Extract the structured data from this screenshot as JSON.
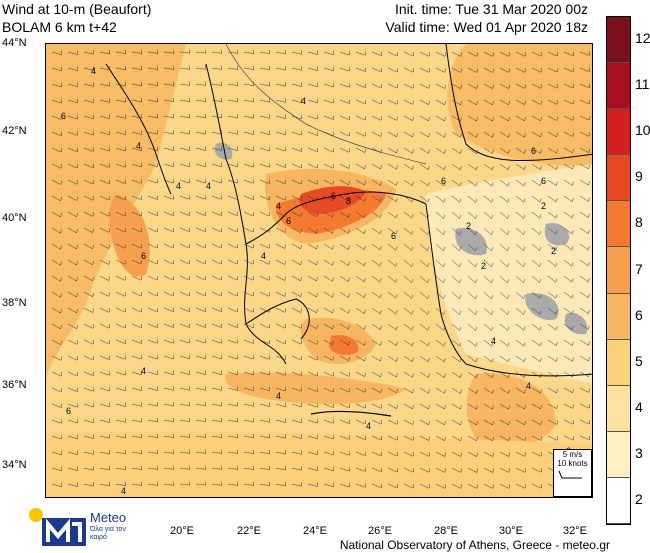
{
  "header": {
    "title_line1": "Wind at 10-m (Beaufort)",
    "title_line2": "BOLAM 6 km t+42",
    "init_time": "Init. time: Tue 31 Mar 2020 00z",
    "valid_time": "Valid time: Wed 01 Apr 2020 18z"
  },
  "axes": {
    "lat_labels": [
      "44°N",
      "42°N",
      "40°N",
      "38°N",
      "36°N",
      "34°N"
    ],
    "lon_labels": [
      "20°E",
      "22°E",
      "24°E",
      "26°E",
      "28°E",
      "30°E",
      "32°E"
    ]
  },
  "colorbar": {
    "labels": [
      "12",
      "11",
      "10",
      "9",
      "8",
      "7",
      "6",
      "5",
      "4",
      "3",
      "2"
    ],
    "colors": [
      "#7a0f1e",
      "#a8101f",
      "#d42020",
      "#e84a25",
      "#f47a30",
      "#f6a04e",
      "#f8b562",
      "#fbd17a",
      "#fde2a0",
      "#fff0c4",
      "#ffffff"
    ]
  },
  "wind_legend": {
    "line1": "5 m/s",
    "line2": "10 knots"
  },
  "contour_labels": [
    "4",
    "6",
    "4",
    "4",
    "6",
    "6",
    "4",
    "6",
    "8",
    "6",
    "4",
    "6",
    "6",
    "4",
    "2",
    "2",
    "2",
    "2",
    "4",
    "4",
    "6",
    "6",
    "4",
    "4",
    "6",
    "4",
    "4",
    "4"
  ],
  "logo": {
    "brand": "Meteo",
    "slogan": "Όλα για τον καιρό"
  },
  "footer": "National Observatory of Athens, Greece - meteo.gr"
}
